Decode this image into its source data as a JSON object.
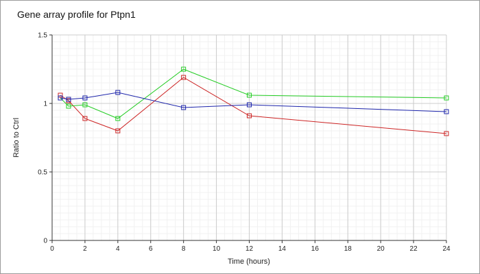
{
  "chart_data": {
    "type": "line",
    "title": "Gene array profile for Ptpn1",
    "xlabel": "Time (hours)",
    "ylabel": "Ratio to Ctrl",
    "xlim": [
      0,
      24
    ],
    "ylim": [
      0,
      1.5
    ],
    "x_ticks": [
      0,
      2,
      4,
      6,
      8,
      10,
      12,
      14,
      16,
      18,
      20,
      22,
      24
    ],
    "y_ticks": [
      0,
      0.5,
      1,
      1.5
    ],
    "y_tick_labels": [
      "0",
      "0.5",
      "1",
      "1.5"
    ],
    "grid": true,
    "minor_grid": true,
    "marker": "square",
    "series": [
      {
        "color": "#cc2222",
        "points": [
          {
            "x": 0.5,
            "y": 1.06
          },
          {
            "x": 1,
            "y": 1.02
          },
          {
            "x": 2,
            "y": 0.89
          },
          {
            "x": 4,
            "y": 0.8
          },
          {
            "x": 8,
            "y": 1.19
          },
          {
            "x": 12,
            "y": 0.91
          },
          {
            "x": 24,
            "y": 0.78
          }
        ]
      },
      {
        "color": "#22cc22",
        "points": [
          {
            "x": 0.5,
            "y": 1.04
          },
          {
            "x": 1,
            "y": 0.98
          },
          {
            "x": 2,
            "y": 0.99
          },
          {
            "x": 4,
            "y": 0.89
          },
          {
            "x": 8,
            "y": 1.25
          },
          {
            "x": 12,
            "y": 1.06
          },
          {
            "x": 24,
            "y": 1.04
          }
        ]
      },
      {
        "color": "#1a22aa",
        "points": [
          {
            "x": 0.5,
            "y": 1.04
          },
          {
            "x": 1,
            "y": 1.03
          },
          {
            "x": 2,
            "y": 1.04
          },
          {
            "x": 4,
            "y": 1.08
          },
          {
            "x": 8,
            "y": 0.97
          },
          {
            "x": 12,
            "y": 0.99
          },
          {
            "x": 24,
            "y": 0.94
          }
        ]
      }
    ]
  }
}
